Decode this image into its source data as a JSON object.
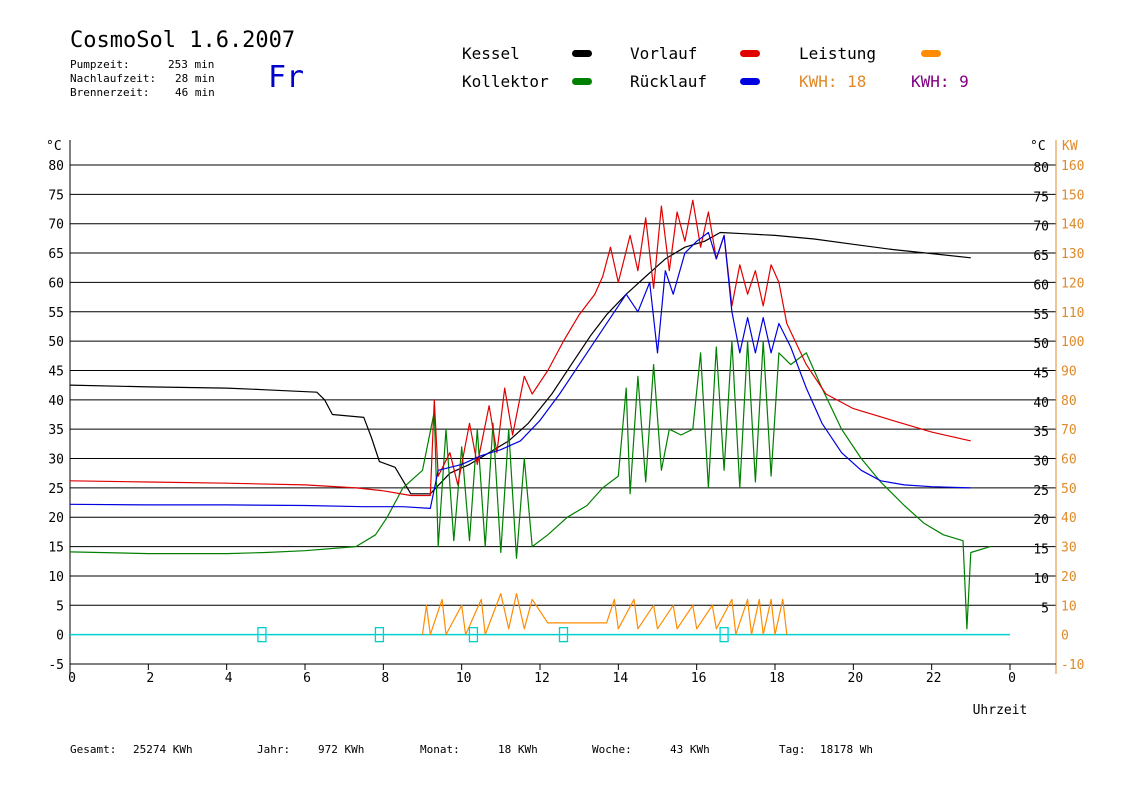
{
  "header": {
    "title": "CosmoSol 1.6.2007",
    "day": "Fr",
    "stats": [
      {
        "label": "Pumpzeit:",
        "value": "253 min"
      },
      {
        "label": "Nachlaufzeit:",
        "value": "28 min"
      },
      {
        "label": "Brennerzeit:",
        "value": "46 min"
      }
    ]
  },
  "legend": {
    "kessel": {
      "label": "Kessel",
      "color": "#000000"
    },
    "kollektor": {
      "label": "Kollektor",
      "color": "#008000"
    },
    "vorlauf": {
      "label": "Vorlauf",
      "color": "#e00000"
    },
    "ruecklauf": {
      "label": "Rücklauf",
      "color": "#0000e0"
    },
    "leistung": {
      "label": "Leistung",
      "color": "#ff8c00"
    },
    "kwh1": {
      "label": "KWH: 18",
      "color": "#e08a2a"
    },
    "kwh2": {
      "label": "KWH: 9",
      "color": "#800080"
    }
  },
  "footer": [
    {
      "label": "Gesamt:",
      "value": "25274 KWh"
    },
    {
      "label": "Jahr:",
      "value": "972 KWh"
    },
    {
      "label": "Monat:",
      "value": "18 KWh"
    },
    {
      "label": "Woche:",
      "value": "43 KWh"
    },
    {
      "label": "Tag:",
      "value": "18178 Wh"
    }
  ],
  "chart_data": {
    "type": "line",
    "xlabel": "Uhrzeit",
    "ylabel_left": "°C",
    "ylabel_right_temp": "°C",
    "ylabel_right_power": "KW",
    "xlim": [
      0,
      24
    ],
    "ylim": [
      -5,
      80
    ],
    "y2lim": [
      -10,
      160
    ],
    "x_ticks": [
      "0",
      "2",
      "4",
      "6",
      "8",
      "10",
      "12",
      "14",
      "16",
      "18",
      "20",
      "22",
      "0"
    ],
    "y_ticks": [
      "-5",
      "0",
      "5",
      "10",
      "15",
      "20",
      "25",
      "30",
      "35",
      "40",
      "45",
      "50",
      "55",
      "60",
      "65",
      "70",
      "75",
      "80"
    ],
    "y_ticks_right": [
      "5",
      "10",
      "15",
      "20",
      "25",
      "30",
      "35",
      "40",
      "45",
      "50",
      "55",
      "60",
      "65",
      "70",
      "75",
      "80"
    ],
    "y2_ticks": [
      "-10",
      "0",
      "10",
      "20",
      "30",
      "40",
      "50",
      "60",
      "70",
      "80",
      "90",
      "100",
      "110",
      "120",
      "130",
      "140",
      "150",
      "160"
    ],
    "grid": true,
    "series": [
      {
        "name": "Kessel",
        "color": "#000000",
        "points": [
          [
            0,
            42.5
          ],
          [
            2,
            42.2
          ],
          [
            4,
            42
          ],
          [
            5,
            41.7
          ],
          [
            6.3,
            41.3
          ],
          [
            6.5,
            40
          ],
          [
            6.7,
            37.5
          ],
          [
            7.5,
            37
          ],
          [
            7.7,
            33.5
          ],
          [
            7.9,
            29.5
          ],
          [
            8.3,
            28.5
          ],
          [
            8.7,
            24
          ],
          [
            9.2,
            24
          ],
          [
            9.7,
            27.5
          ],
          [
            10.2,
            29
          ],
          [
            10.7,
            31
          ],
          [
            11.2,
            33
          ],
          [
            11.7,
            36
          ],
          [
            12.3,
            41
          ],
          [
            12.8,
            46
          ],
          [
            13.3,
            51
          ],
          [
            13.7,
            54.5
          ],
          [
            14.2,
            58
          ],
          [
            14.7,
            61
          ],
          [
            15.2,
            64
          ],
          [
            15.7,
            66
          ],
          [
            16.2,
            67
          ],
          [
            16.6,
            68.5
          ],
          [
            17.2,
            68.3
          ],
          [
            18,
            68
          ],
          [
            19,
            67.4
          ],
          [
            20,
            66.5
          ],
          [
            21,
            65.6
          ],
          [
            22,
            64.9
          ],
          [
            23,
            64.2
          ]
        ]
      },
      {
        "name": "Kollektor",
        "color": "#008000",
        "points": [
          [
            0,
            14.1
          ],
          [
            2,
            13.8
          ],
          [
            4,
            13.8
          ],
          [
            5,
            14
          ],
          [
            6,
            14.3
          ],
          [
            7.3,
            15
          ],
          [
            7.8,
            17
          ],
          [
            8.1,
            20
          ],
          [
            8.5,
            25
          ],
          [
            9,
            28
          ],
          [
            9.3,
            38
          ],
          [
            9.4,
            15
          ],
          [
            9.6,
            35
          ],
          [
            9.8,
            16
          ],
          [
            10,
            32
          ],
          [
            10.2,
            16
          ],
          [
            10.4,
            35
          ],
          [
            10.6,
            15
          ],
          [
            10.8,
            36
          ],
          [
            11,
            14
          ],
          [
            11.2,
            35
          ],
          [
            11.4,
            13
          ],
          [
            11.6,
            30
          ],
          [
            11.8,
            15
          ],
          [
            12.2,
            17
          ],
          [
            12.7,
            20
          ],
          [
            13.2,
            22
          ],
          [
            13.6,
            25
          ],
          [
            14,
            27
          ],
          [
            14.2,
            42
          ],
          [
            14.3,
            24
          ],
          [
            14.5,
            44
          ],
          [
            14.7,
            26
          ],
          [
            14.9,
            46
          ],
          [
            15.1,
            28
          ],
          [
            15.3,
            35
          ],
          [
            15.6,
            34
          ],
          [
            15.9,
            35
          ],
          [
            16.1,
            48
          ],
          [
            16.3,
            25
          ],
          [
            16.5,
            49
          ],
          [
            16.7,
            28
          ],
          [
            16.9,
            50
          ],
          [
            17.1,
            25
          ],
          [
            17.3,
            50
          ],
          [
            17.5,
            26
          ],
          [
            17.7,
            50
          ],
          [
            17.9,
            27
          ],
          [
            18.1,
            48
          ],
          [
            18.4,
            46
          ],
          [
            18.8,
            48
          ],
          [
            19.2,
            42
          ],
          [
            19.7,
            35
          ],
          [
            20.2,
            30
          ],
          [
            20.7,
            26
          ],
          [
            21.3,
            22
          ],
          [
            21.8,
            19
          ],
          [
            22.3,
            17
          ],
          [
            22.8,
            16
          ],
          [
            22.9,
            1
          ],
          [
            23,
            14
          ],
          [
            23.5,
            15
          ]
        ]
      },
      {
        "name": "Vorlauf",
        "color": "#e00000",
        "points": [
          [
            0,
            26.2
          ],
          [
            2,
            26
          ],
          [
            4,
            25.8
          ],
          [
            6,
            25.5
          ],
          [
            7.3,
            25
          ],
          [
            8,
            24.5
          ],
          [
            8.7,
            23.7
          ],
          [
            9.2,
            23.7
          ],
          [
            9.3,
            40
          ],
          [
            9.4,
            27
          ],
          [
            9.7,
            31
          ],
          [
            9.9,
            25.5
          ],
          [
            10.2,
            36
          ],
          [
            10.4,
            29
          ],
          [
            10.7,
            39
          ],
          [
            10.9,
            31
          ],
          [
            11.1,
            42
          ],
          [
            11.3,
            34
          ],
          [
            11.6,
            44
          ],
          [
            11.8,
            41
          ],
          [
            12.2,
            45
          ],
          [
            12.6,
            50
          ],
          [
            13,
            54.5
          ],
          [
            13.4,
            58
          ],
          [
            13.6,
            61
          ],
          [
            13.8,
            66
          ],
          [
            14,
            60
          ],
          [
            14.3,
            68
          ],
          [
            14.5,
            62
          ],
          [
            14.7,
            71
          ],
          [
            14.9,
            59
          ],
          [
            15.1,
            73
          ],
          [
            15.3,
            62
          ],
          [
            15.5,
            72
          ],
          [
            15.7,
            67
          ],
          [
            15.9,
            74
          ],
          [
            16.1,
            66
          ],
          [
            16.3,
            72
          ],
          [
            16.5,
            64
          ],
          [
            16.7,
            68
          ],
          [
            16.9,
            56
          ],
          [
            17.1,
            63
          ],
          [
            17.3,
            58
          ],
          [
            17.5,
            62
          ],
          [
            17.7,
            56
          ],
          [
            17.9,
            63
          ],
          [
            18.1,
            60
          ],
          [
            18.3,
            53
          ],
          [
            18.8,
            46
          ],
          [
            19.3,
            41
          ],
          [
            20,
            38.5
          ],
          [
            21,
            36.5
          ],
          [
            22,
            34.5
          ],
          [
            23,
            33
          ]
        ]
      },
      {
        "name": "Rücklauf",
        "color": "#0000e0",
        "points": [
          [
            0,
            22.2
          ],
          [
            2,
            22.1
          ],
          [
            4,
            22.1
          ],
          [
            6,
            22
          ],
          [
            7.5,
            21.8
          ],
          [
            8.5,
            21.8
          ],
          [
            9.2,
            21.5
          ],
          [
            9.4,
            28
          ],
          [
            10,
            29
          ],
          [
            10.5,
            30.5
          ],
          [
            11,
            31.5
          ],
          [
            11.5,
            33
          ],
          [
            12,
            36.5
          ],
          [
            12.5,
            41
          ],
          [
            13,
            46
          ],
          [
            13.5,
            51
          ],
          [
            13.9,
            55
          ],
          [
            14.2,
            58
          ],
          [
            14.5,
            55
          ],
          [
            14.8,
            60
          ],
          [
            15,
            48
          ],
          [
            15.2,
            62
          ],
          [
            15.4,
            58
          ],
          [
            15.7,
            65
          ],
          [
            16,
            67
          ],
          [
            16.3,
            68.5
          ],
          [
            16.5,
            64
          ],
          [
            16.7,
            68
          ],
          [
            16.9,
            55
          ],
          [
            17.1,
            48
          ],
          [
            17.3,
            54
          ],
          [
            17.5,
            48
          ],
          [
            17.7,
            54
          ],
          [
            17.9,
            48
          ],
          [
            18.1,
            53
          ],
          [
            18.4,
            49
          ],
          [
            18.8,
            42
          ],
          [
            19.2,
            36
          ],
          [
            19.7,
            31
          ],
          [
            20.2,
            28
          ],
          [
            20.7,
            26.2
          ],
          [
            21.3,
            25.5
          ],
          [
            22,
            25.2
          ],
          [
            23,
            25
          ]
        ]
      },
      {
        "name": "Leistung",
        "color": "#ff8c00",
        "points": [
          [
            9,
            0
          ],
          [
            9.1,
            5
          ],
          [
            9.2,
            0
          ],
          [
            9.5,
            6
          ],
          [
            9.6,
            0
          ],
          [
            10,
            5
          ],
          [
            10.1,
            0
          ],
          [
            10.5,
            6
          ],
          [
            10.6,
            0
          ],
          [
            11,
            7
          ],
          [
            11.2,
            1
          ],
          [
            11.4,
            7
          ],
          [
            11.6,
            1
          ],
          [
            11.8,
            6
          ],
          [
            12.2,
            2
          ],
          [
            13,
            2
          ],
          [
            13.7,
            2
          ],
          [
            13.9,
            6
          ],
          [
            14,
            1
          ],
          [
            14.4,
            6
          ],
          [
            14.5,
            1
          ],
          [
            14.9,
            5
          ],
          [
            15,
            1
          ],
          [
            15.4,
            5
          ],
          [
            15.5,
            1
          ],
          [
            15.9,
            5
          ],
          [
            16,
            1
          ],
          [
            16.4,
            5
          ],
          [
            16.5,
            1
          ],
          [
            16.9,
            6
          ],
          [
            17,
            0
          ],
          [
            17.3,
            6
          ],
          [
            17.4,
            0
          ],
          [
            17.6,
            6
          ],
          [
            17.7,
            0
          ],
          [
            17.9,
            6
          ],
          [
            18,
            0
          ],
          [
            18.2,
            6
          ],
          [
            18.3,
            0
          ]
        ]
      }
    ],
    "day_marks_x": [
      4.9,
      7.9,
      10.3,
      12.6,
      16.7
    ]
  }
}
